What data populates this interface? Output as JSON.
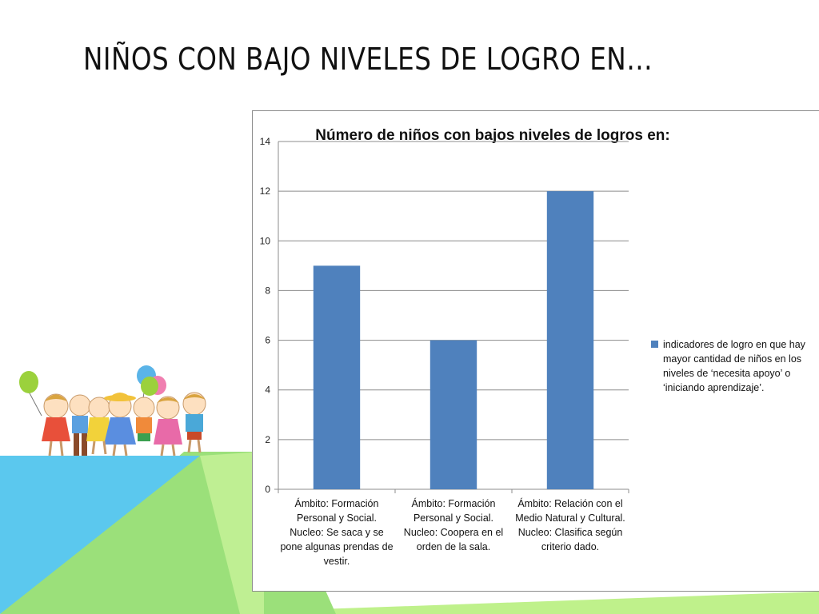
{
  "slide": {
    "title": "NIÑOS CON BAJO NIVELES DE LOGRO EN…"
  },
  "colors": {
    "bar": "#4f81bd",
    "deco_blue": "#5bc8ee",
    "deco_green": "#9be07a",
    "deco_lightgreen": "#bff18b"
  },
  "decoration": {
    "illustration": "children-with-balloons-icon"
  },
  "chart_data": {
    "type": "bar",
    "title": "Número de niños con bajos niveles de logros en:",
    "categories": [
      [
        "Ámbito: Formación",
        "Personal y Social.",
        "Nucleo: Se saca y se",
        "pone algunas prendas de",
        "vestir."
      ],
      [
        "Ámbito: Formación",
        "Personal y Social.",
        "Nucleo: Coopera en el",
        "orden de la sala."
      ],
      [
        "Ámbito: Relación con el",
        "Medio Natural y Cultural.",
        "Nucleo: Clasifica según",
        "criterio dado."
      ]
    ],
    "series": [
      {
        "name": "indicadores de logro en que hay mayor cantidad de niños en los niveles de ‘necesita apoyo’ o ‘iniciando aprendizaje’.",
        "values": [
          9,
          6,
          12
        ]
      }
    ],
    "legend_lines": [
      "indicadores de logro en que hay",
      "mayor cantidad de niños en los",
      "niveles de ‘necesita apoyo’ o",
      "‘iniciando aprendizaje’."
    ],
    "yticks": [
      "0",
      "2",
      "4",
      "6",
      "8",
      "10",
      "12",
      "14"
    ],
    "ylim": [
      0,
      14
    ],
    "grid": true,
    "legend_position": "right"
  }
}
